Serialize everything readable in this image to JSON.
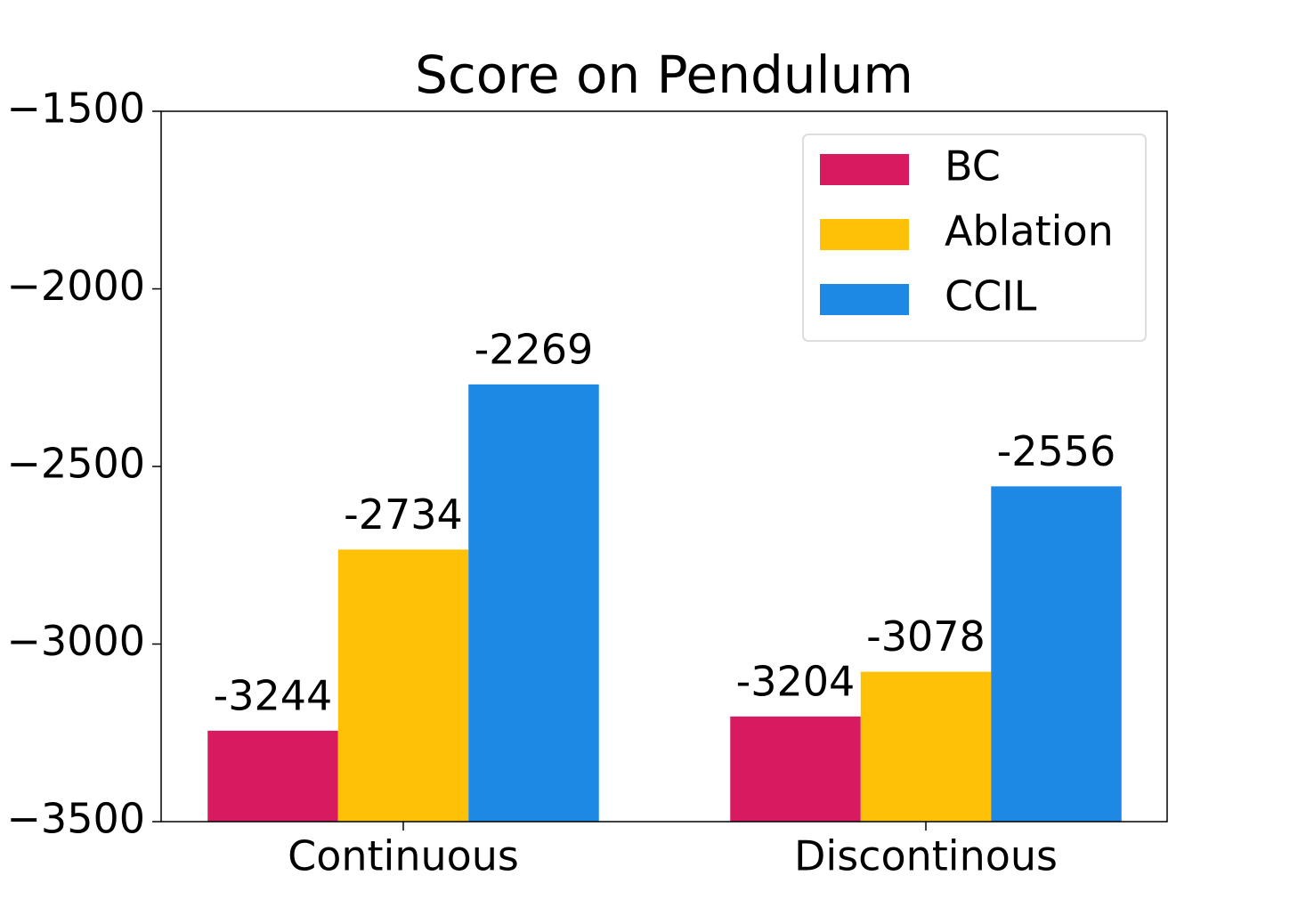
{
  "chart_data": {
    "type": "bar",
    "title": "Score on Pendulum",
    "categories": [
      "Continuous",
      "Discontinous"
    ],
    "series": [
      {
        "name": "BC",
        "color": "#d81b60",
        "values": [
          -3244,
          -3204
        ]
      },
      {
        "name": "Ablation",
        "color": "#ffc107",
        "values": [
          -2734,
          -3078
        ]
      },
      {
        "name": "CCIL",
        "color": "#1e88e5",
        "values": [
          -2269,
          -2556
        ]
      }
    ],
    "ylim": [
      -3500,
      -1500
    ],
    "yticks": [
      {
        "value": -1500,
        "label": "−1500"
      },
      {
        "value": -2000,
        "label": "−2000"
      },
      {
        "value": -2500,
        "label": "−2500"
      },
      {
        "value": -3000,
        "label": "−3000"
      },
      {
        "value": -3500,
        "label": "−3500"
      }
    ],
    "legend": "upper right"
  }
}
